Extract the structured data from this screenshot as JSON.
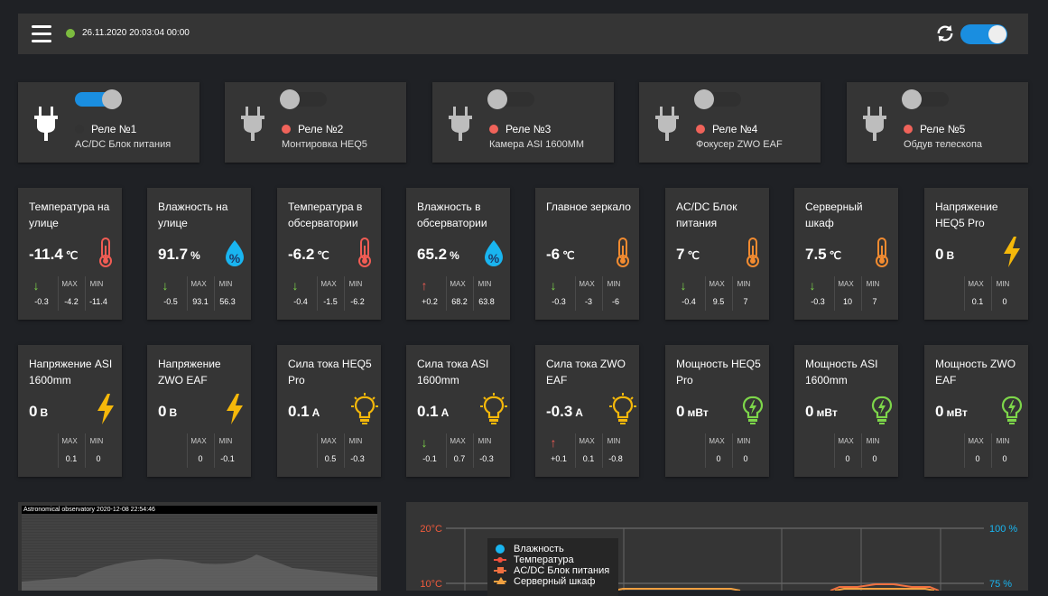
{
  "header": {
    "datetime": "26.11.2020 20:03:04 00:00",
    "status_color": "#7cbb3f",
    "auto_refresh_on": true
  },
  "relays": [
    {
      "name": "Реле №1",
      "desc": "AC/DC Блок питания",
      "on": true,
      "dot_color": "#333333"
    },
    {
      "name": "Реле №2",
      "desc": "Монтировка HEQ5",
      "on": false,
      "dot_color": "#f0635a"
    },
    {
      "name": "Реле №3",
      "desc": "Камера ASI 1600MM",
      "on": false,
      "dot_color": "#f0635a"
    },
    {
      "name": "Реле №4",
      "desc": "Фокусер ZWO EAF",
      "on": false,
      "dot_color": "#f0635a"
    },
    {
      "name": "Реле №5",
      "desc": "Обдув телескопа",
      "on": false,
      "dot_color": "#f0635a"
    }
  ],
  "labels": {
    "max": "MAX",
    "min": "MIN"
  },
  "sensors_row1": [
    {
      "title": "Температура на улице",
      "value": "-11.4",
      "unit": "℃",
      "icon": "thermometer-red-icon",
      "trend": "down",
      "delta": "-0.3",
      "max": "-4.2",
      "min": "-11.4"
    },
    {
      "title": "Влажность на улице",
      "value": "91.7",
      "unit": "%",
      "icon": "humidity-icon",
      "trend": "down",
      "delta": "-0.5",
      "max": "93.1",
      "min": "56.3"
    },
    {
      "title": "Температура в обсерватории",
      "value": "-6.2",
      "unit": "℃",
      "icon": "thermometer-red-icon",
      "trend": "down",
      "delta": "-0.4",
      "max": "-1.5",
      "min": "-6.2"
    },
    {
      "title": "Влажность в обсерватории",
      "value": "65.2",
      "unit": "%",
      "icon": "humidity-icon",
      "trend": "up",
      "delta": "+0.2",
      "max": "68.2",
      "min": "63.8"
    },
    {
      "title": "Главное зеркало",
      "value": "-6",
      "unit": "℃",
      "icon": "thermometer-orange-icon",
      "trend": "down",
      "delta": "-0.3",
      "max": "-3",
      "min": "-6"
    },
    {
      "title": "AC/DC Блок питания",
      "value": "7",
      "unit": "℃",
      "icon": "thermometer-orange-icon",
      "trend": "down",
      "delta": "-0.4",
      "max": "9.5",
      "min": "7"
    },
    {
      "title": "Серверный шкаф",
      "value": "7.5",
      "unit": "℃",
      "icon": "thermometer-orange-icon",
      "trend": "down",
      "delta": "-0.3",
      "max": "10",
      "min": "7"
    },
    {
      "title": "Напряжение HEQ5 Pro",
      "value": "0",
      "unit": "В",
      "icon": "lightning-icon",
      "trend": "",
      "delta": "",
      "max": "0.1",
      "min": "0"
    }
  ],
  "sensors_row2": [
    {
      "title": "Напряжение ASI 1600mm",
      "value": "0",
      "unit": "В",
      "icon": "lightning-icon",
      "trend": "",
      "delta": "",
      "max": "0.1",
      "min": "0"
    },
    {
      "title": "Напряжение ZWO EAF",
      "value": "0",
      "unit": "В",
      "icon": "lightning-icon",
      "trend": "",
      "delta": "",
      "max": "0",
      "min": "-0.1"
    },
    {
      "title": "Сила тока HEQ5 Pro",
      "value": "0.1",
      "unit": "A",
      "icon": "bulb-orange-icon",
      "trend": "",
      "delta": "",
      "max": "0.5",
      "min": "-0.3"
    },
    {
      "title": "Сила тока ASI 1600mm",
      "value": "0.1",
      "unit": "A",
      "icon": "bulb-orange-icon",
      "trend": "down",
      "delta": "-0.1",
      "max": "0.7",
      "min": "-0.3"
    },
    {
      "title": "Сила тока ZWO EAF",
      "value": "-0.3",
      "unit": "A",
      "icon": "bulb-orange-icon",
      "trend": "up",
      "delta": "+0.1",
      "max": "0.1",
      "min": "-0.8"
    },
    {
      "title": "Мощность HEQ5 Pro",
      "value": "0",
      "unit": "мВт",
      "icon": "bulb-green-icon",
      "trend": "",
      "delta": "",
      "max": "0",
      "min": "0"
    },
    {
      "title": "Мощность ASI 1600mm",
      "value": "0",
      "unit": "мВт",
      "icon": "bulb-green-icon",
      "trend": "",
      "delta": "",
      "max": "0",
      "min": "0"
    },
    {
      "title": "Мощность ZWO EAF",
      "value": "0",
      "unit": "мВт",
      "icon": "bulb-green-icon",
      "trend": "",
      "delta": "",
      "max": "0",
      "min": "0"
    }
  ],
  "camera": {
    "caption": "Astronomical observatory 2020-12-08 22:54:46"
  },
  "chart_data": {
    "type": "line",
    "y_left_ticks": [
      "20°C",
      "10°C"
    ],
    "y_right_ticks": [
      "100 %",
      "75 %"
    ],
    "series": [
      {
        "name": "Влажность",
        "color": "#19b5f0"
      },
      {
        "name": "Температура",
        "color": "#f0503c"
      },
      {
        "name": "AC/DC Блок питания",
        "color": "#f07040"
      },
      {
        "name": "Серверный шкаф",
        "color": "#f0a040"
      }
    ]
  }
}
